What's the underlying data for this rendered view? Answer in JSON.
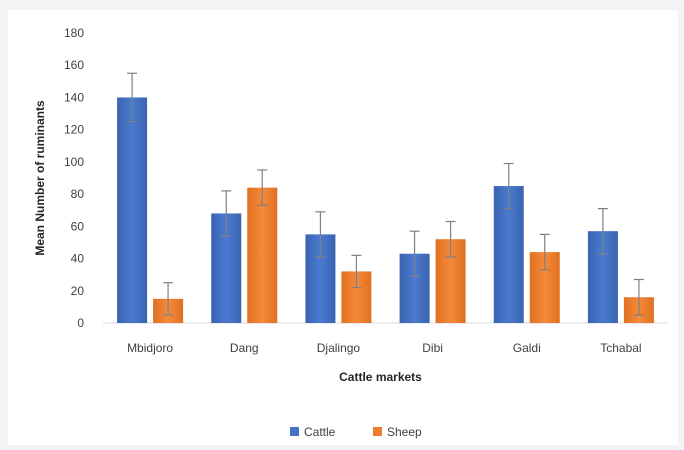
{
  "chart_data": {
    "type": "bar",
    "title": "",
    "xlabel": "Cattle markets",
    "ylabel": "Mean Number of ruminants",
    "ylim": [
      0,
      180
    ],
    "yticks": [
      0,
      20,
      40,
      60,
      80,
      100,
      120,
      140,
      160,
      180
    ],
    "grid": false,
    "legend_position": "bottom",
    "error_bars": true,
    "categories": [
      "Mbidjoro",
      "Dang",
      "Djalingo",
      "Dibi",
      "Galdi",
      "Tchabal"
    ],
    "series": [
      {
        "name": "Cattle",
        "color": "#4472c4",
        "values": [
          140,
          68,
          55,
          43,
          85,
          57
        ],
        "errors": [
          15,
          14,
          14,
          14,
          14,
          14
        ]
      },
      {
        "name": "Sheep",
        "color": "#ed7d31",
        "values": [
          15,
          84,
          32,
          52,
          44,
          16
        ],
        "errors": [
          10,
          11,
          10,
          11,
          11,
          11
        ]
      }
    ]
  }
}
